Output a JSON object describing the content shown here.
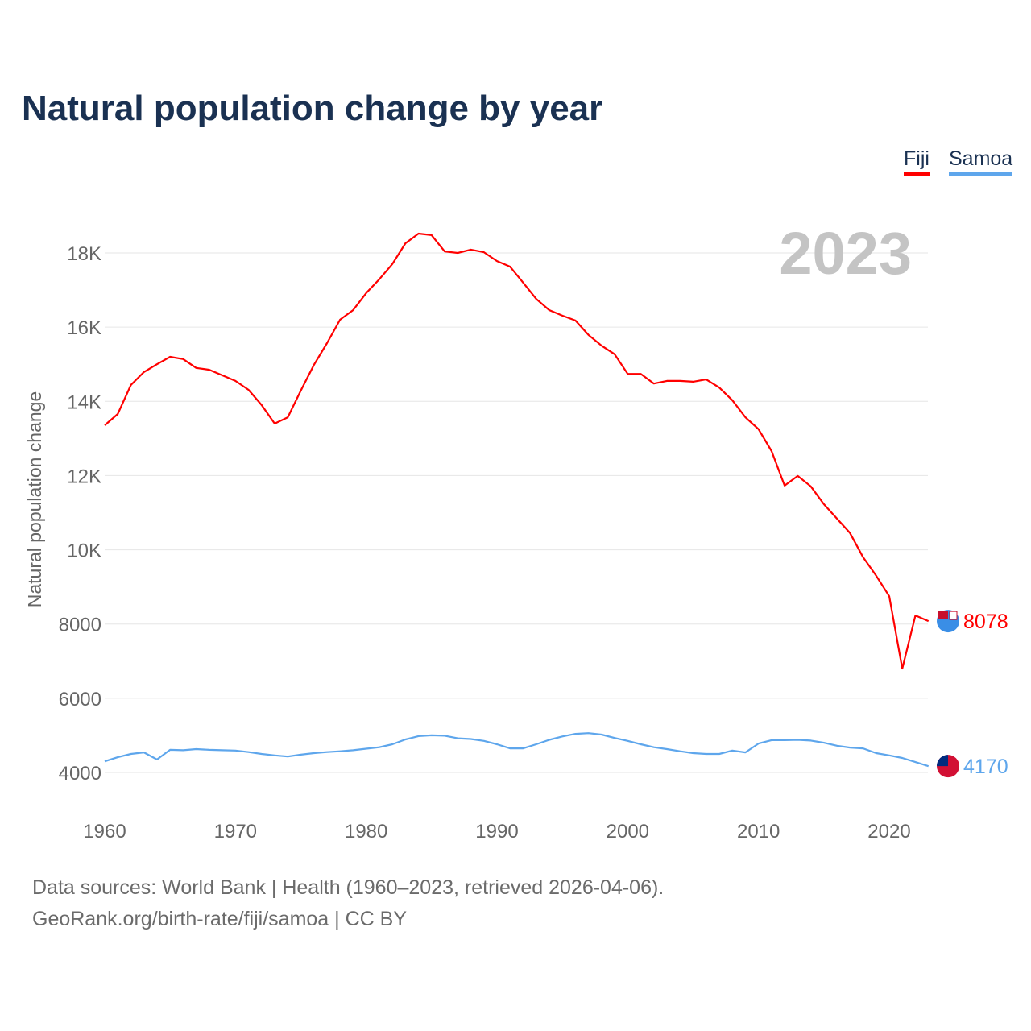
{
  "chart_data": {
    "type": "line",
    "title": "Natural population change by year",
    "xlabel": "",
    "ylabel": "Natural population change",
    "xlim": [
      1960,
      2023
    ],
    "ylim": [
      3000,
      19000
    ],
    "x_ticks": [
      1960,
      1970,
      1980,
      1990,
      2000,
      2010,
      2020
    ],
    "x_tick_labels": [
      "1960",
      "1970",
      "1980",
      "1990",
      "2000",
      "2010",
      "2020"
    ],
    "y_ticks": [
      4000,
      6000,
      8000,
      10000,
      12000,
      14000,
      16000,
      18000
    ],
    "y_tick_labels": [
      "4000",
      "6000",
      "8000",
      "10K",
      "12K",
      "14K",
      "16K",
      "18K"
    ],
    "grid": true,
    "legend_position": "top-right",
    "year_label": "2023",
    "x": [
      1960,
      1961,
      1962,
      1963,
      1964,
      1965,
      1966,
      1967,
      1968,
      1969,
      1970,
      1971,
      1972,
      1973,
      1974,
      1975,
      1976,
      1977,
      1978,
      1979,
      1980,
      1981,
      1982,
      1983,
      1984,
      1985,
      1986,
      1987,
      1988,
      1989,
      1990,
      1991,
      1992,
      1993,
      1994,
      1995,
      1996,
      1997,
      1998,
      1999,
      2000,
      2001,
      2002,
      2003,
      2004,
      2005,
      2006,
      2007,
      2008,
      2009,
      2010,
      2011,
      2012,
      2013,
      2014,
      2015,
      2016,
      2017,
      2018,
      2019,
      2020,
      2021,
      2022,
      2023
    ],
    "series": [
      {
        "name": "Fiji",
        "color": "#ff0000",
        "end_label": "8078",
        "values": [
          13355,
          13660,
          14440,
          14790,
          15000,
          15200,
          15140,
          14900,
          14850,
          14700,
          14550,
          14310,
          13900,
          13400,
          13570,
          14290,
          14980,
          15570,
          16200,
          16460,
          16920,
          17290,
          17700,
          18260,
          18520,
          18480,
          18040,
          18000,
          18090,
          18020,
          17780,
          17630,
          17200,
          16760,
          16460,
          16310,
          16180,
          15790,
          15500,
          15270,
          14740,
          14740,
          14480,
          14550,
          14550,
          14530,
          14590,
          14370,
          14030,
          13570,
          13250,
          12660,
          11730,
          11990,
          11710,
          11230,
          10840,
          10450,
          9800,
          9300,
          8750,
          6800,
          8230,
          8078
        ]
      },
      {
        "name": "Samoa",
        "color": "#5ea6ec",
        "end_label": "4170",
        "values": [
          4300,
          4410,
          4500,
          4540,
          4350,
          4610,
          4600,
          4630,
          4610,
          4600,
          4590,
          4550,
          4500,
          4460,
          4430,
          4480,
          4520,
          4550,
          4570,
          4600,
          4640,
          4680,
          4760,
          4890,
          4980,
          5000,
          4990,
          4920,
          4900,
          4850,
          4760,
          4650,
          4650,
          4760,
          4880,
          4970,
          5040,
          5060,
          5020,
          4930,
          4850,
          4760,
          4680,
          4630,
          4570,
          4520,
          4500,
          4500,
          4590,
          4540,
          4780,
          4870,
          4870,
          4880,
          4860,
          4800,
          4720,
          4670,
          4650,
          4520,
          4460,
          4390,
          4280,
          4170
        ]
      }
    ]
  },
  "footer": {
    "line1": "Data sources: World Bank | Health (1960–2023, retrieved 2026-04-06).",
    "line2": "GeoRank.org/birth-rate/fiji/samoa | CC BY"
  }
}
